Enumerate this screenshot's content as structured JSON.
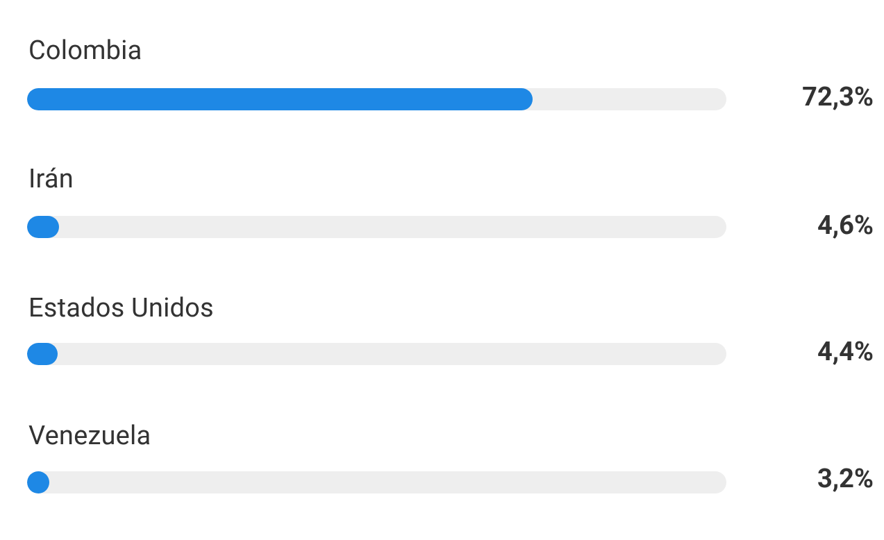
{
  "bar_color": "#1e88e5",
  "track_color": "#eeeeee",
  "items": [
    {
      "label": "Colombia",
      "percent_text": "72,3%",
      "value": 72.3
    },
    {
      "label": "Irán",
      "percent_text": "4,6%",
      "value": 4.6
    },
    {
      "label": "Estados Unidos",
      "percent_text": "4,4%",
      "value": 4.4
    },
    {
      "label": "Venezuela",
      "percent_text": "3,2%",
      "value": 3.2
    }
  ]
}
